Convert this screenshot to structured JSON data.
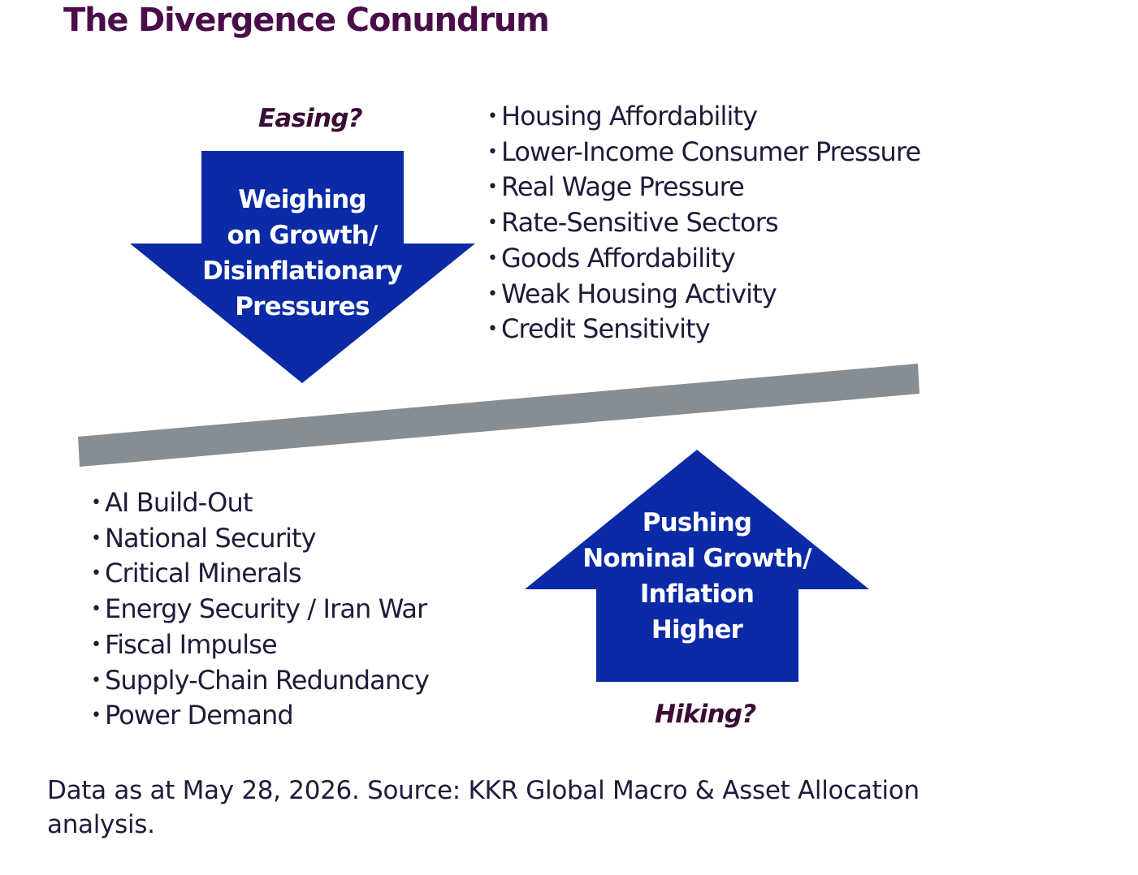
{
  "title": "The Divergence Conundrum",
  "colors": {
    "title": "#4a0d4a",
    "arrow_fill": "#0a2aa6",
    "seesaw_beam": "#868e93",
    "question_text": "#3a0d36",
    "body_text": "#1c1c3a",
    "arrow_text": "#ffffff"
  },
  "top_question": "Easing?",
  "down_arrow": {
    "lines": [
      "Weighing",
      "on Growth/",
      "Disinflationary",
      "Pressures"
    ]
  },
  "top_items": [
    "Housing Affordability",
    "Lower-Income Consumer Pressure",
    "Real Wage Pressure",
    "Rate-Sensitive Sectors",
    "Goods Affordability",
    "Weak Housing Activity",
    "Credit Sensitivity"
  ],
  "bottom_items": [
    "AI Build-Out",
    "National Security",
    "Critical Minerals",
    "Energy Security / Iran War",
    "Fiscal Impulse",
    "Supply-Chain Redundancy",
    "Power Demand"
  ],
  "up_arrow": {
    "lines": [
      "Pushing",
      "Nominal Growth/",
      "Inflation",
      "Higher"
    ]
  },
  "bottom_question": "Hiking?",
  "source": "Data as at May 28, 2026. Source: KKR Global Macro & Asset Allocation analysis."
}
